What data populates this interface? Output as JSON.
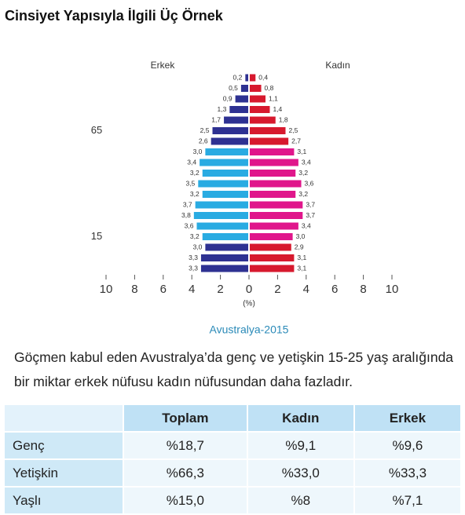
{
  "header": {
    "title": "Cinsiyet Yapısıyla İlgili Üç Örnek"
  },
  "chart_data": {
    "type": "pyramid",
    "categories": [
      null,
      null,
      null,
      null,
      null,
      "65",
      null,
      null,
      null,
      null,
      null,
      null,
      null,
      null,
      null,
      "15",
      null,
      null,
      null
    ],
    "series": [
      {
        "name": "Erkek",
        "colors": [
          "#2e3192",
          "#2e3192",
          "#2e3192",
          "#2e3192",
          "#2e3192",
          "#2e3192",
          "#2e3192",
          "#29abe2",
          "#29abe2",
          "#29abe2",
          "#29abe2",
          "#29abe2",
          "#29abe2",
          "#29abe2",
          "#29abe2",
          "#29abe2",
          "#2e3192",
          "#2e3192",
          "#2e3192"
        ],
        "values": [
          0.2,
          0.5,
          0.9,
          1.3,
          1.7,
          2.5,
          2.6,
          3.0,
          3.4,
          3.2,
          3.5,
          3.2,
          3.7,
          3.8,
          3.6,
          3.2,
          3.0,
          3.3,
          3.3
        ],
        "value_labels": [
          "0,2",
          "0,5",
          "0,9",
          "1,3",
          "1,7",
          "2,5",
          "2,6",
          "3,0",
          "3,4",
          "3,2",
          "3,5",
          "3,2",
          "3,7",
          "3,8",
          "3,6",
          "3,2",
          "3,0",
          "3,3",
          "3,3"
        ]
      },
      {
        "name": "Kadın",
        "colors": [
          "#d7192e",
          "#d7192e",
          "#d7192e",
          "#d7192e",
          "#d7192e",
          "#d7192e",
          "#d7192e",
          "#e0168b",
          "#e0168b",
          "#e0168b",
          "#e0168b",
          "#e0168b",
          "#e0168b",
          "#e0168b",
          "#e0168b",
          "#e0168b",
          "#d7192e",
          "#d7192e",
          "#d7192e"
        ],
        "values": [
          0.4,
          0.8,
          1.1,
          1.4,
          1.8,
          2.5,
          2.7,
          3.1,
          3.4,
          3.2,
          3.6,
          3.2,
          3.7,
          3.7,
          3.4,
          3.0,
          2.9,
          3.1,
          3.1
        ],
        "value_labels": [
          "0,4",
          "0,8",
          "1,1",
          "1,4",
          "1,8",
          "2,5",
          "2,7",
          "3,1",
          "3,4",
          "3,2",
          "3,6",
          "3,2",
          "3,7",
          "3,7",
          "3,4",
          "3,0",
          "2,9",
          "3,1",
          "3,1"
        ]
      }
    ],
    "xlim": [
      -10,
      10
    ],
    "xticks": [
      {
        "value": -10,
        "label": "10"
      },
      {
        "value": -8,
        "label": "8"
      },
      {
        "value": -6,
        "label": "6"
      },
      {
        "value": -4,
        "label": "4"
      },
      {
        "value": -2,
        "label": "2"
      },
      0,
      2,
      4,
      6,
      8,
      10
    ],
    "x_label": "(%)",
    "caption": "Avustralya-2015"
  },
  "paragraph": "Göçmen kabul eden Avustralya’da genç ve yetişkin 15-25 yaş aralığında bir miktar erkek nüfusu kadın nüfusundan daha fazladır.",
  "table": {
    "columns": [
      "Toplam",
      "Kadın",
      "Erkek"
    ],
    "rows": [
      [
        "Genç",
        "%18,7",
        "%9,1",
        "%9,6"
      ],
      [
        "Yetişkin",
        "%66,3",
        "%33,0",
        "%33,3"
      ],
      [
        "Yaşlı",
        "%15,0",
        "%8",
        "%7,1"
      ]
    ]
  }
}
